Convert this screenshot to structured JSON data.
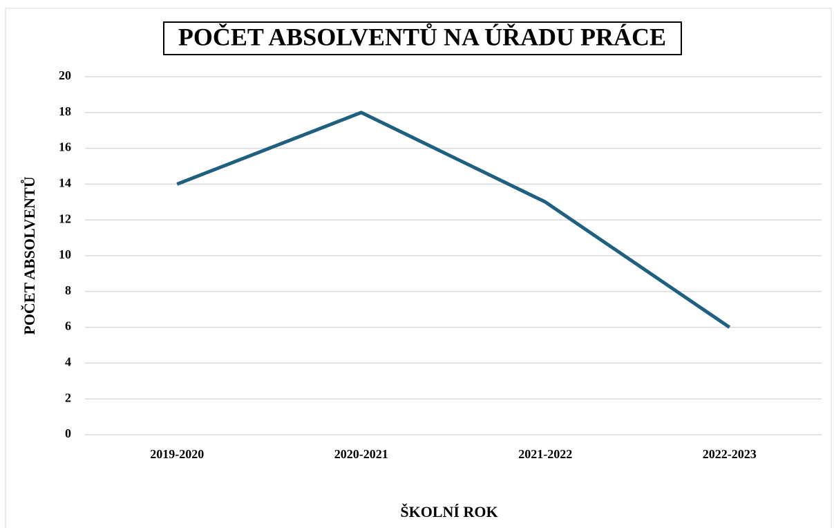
{
  "chart_data": {
    "type": "line",
    "title": "POČET ABSOLVENTŮ NA ÚŘADU PRÁCE",
    "x_label": "ŠKOLNÍ ROK",
    "y_label": "POČET ABSOLVENTŮ",
    "categories": [
      "2019-2020",
      "2020-2021",
      "2021-2022",
      "2022-2023"
    ],
    "series": [
      {
        "name": "Počet absolventů",
        "color": "#1f5f7f",
        "values": [
          14,
          18,
          13,
          6
        ]
      }
    ],
    "ylim": [
      0,
      20
    ],
    "yticks": [
      0,
      2,
      4,
      6,
      8,
      10,
      12,
      14,
      16,
      18,
      20
    ],
    "grid": true
  }
}
